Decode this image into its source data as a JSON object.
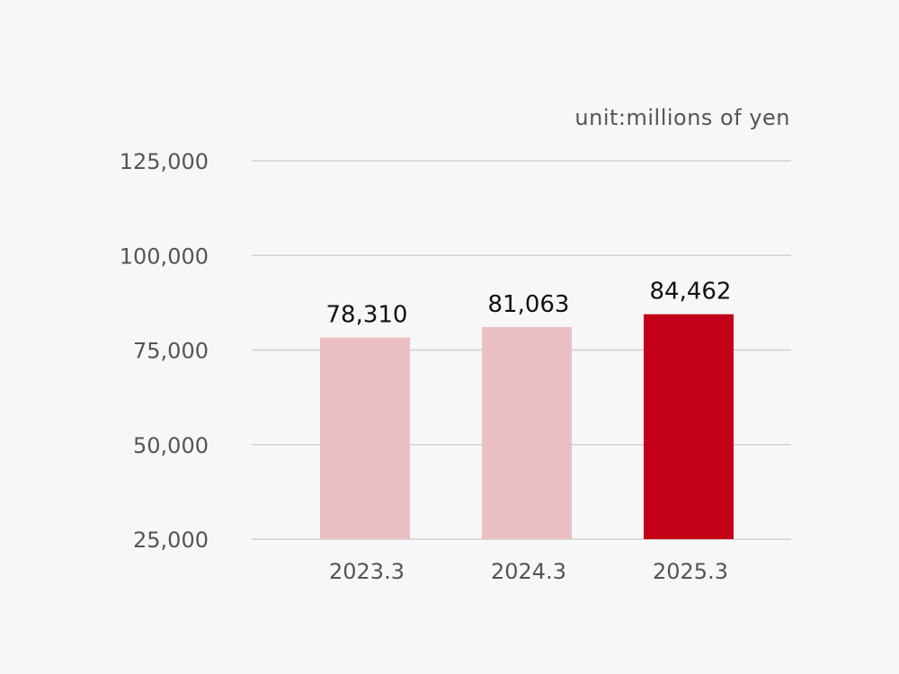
{
  "unit_label": "unit:millions of yen",
  "chart_data": {
    "type": "bar",
    "title": "",
    "xlabel": "",
    "ylabel": "",
    "categories": [
      "2023.3",
      "2024.3",
      "2025.3"
    ],
    "values": [
      78310,
      81063,
      84462
    ],
    "value_labels": [
      "78,310",
      "81,063",
      "84,462"
    ],
    "ylim": [
      25000,
      125000
    ],
    "yticks": [
      25000,
      50000,
      75000,
      100000,
      125000
    ],
    "ytick_labels": [
      "25,000",
      "50,000",
      "75,000",
      "100,000",
      "125,000"
    ],
    "grid": true,
    "legend": "none",
    "bar_colors": [
      "#ecbfc3",
      "#ecbfc3",
      "#c20016"
    ],
    "grid_color": "#d0d0d0"
  }
}
